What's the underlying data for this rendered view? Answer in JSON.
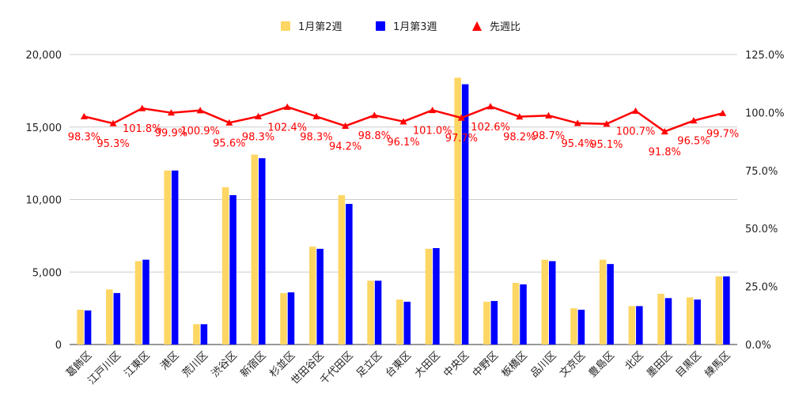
{
  "chart_data": {
    "type": "bar",
    "categories": [
      "葛飾区",
      "江戸川区",
      "江東区",
      "港区",
      "荒川区",
      "渋谷区",
      "新宿区",
      "杉並区",
      "世田谷区",
      "千代田区",
      "足立区",
      "台東区",
      "大田区",
      "中央区",
      "中野区",
      "板橋区",
      "品川区",
      "文京区",
      "豊島区",
      "北区",
      "墨田区",
      "目黒区",
      "練馬区"
    ],
    "series": [
      {
        "name": "1月第2週",
        "color": "#fdd663",
        "axis": "left",
        "values": [
          2400,
          3800,
          5750,
          12000,
          1400,
          10850,
          13100,
          3550,
          6750,
          10300,
          4400,
          3100,
          6600,
          18400,
          2950,
          4250,
          5850,
          2500,
          5850,
          2650,
          3500,
          3250,
          4700
        ]
      },
      {
        "name": "1月第3週",
        "color": "#0000ff",
        "axis": "left",
        "values": [
          2350,
          3550,
          5850,
          12000,
          1400,
          10300,
          12850,
          3600,
          6600,
          9700,
          4400,
          2950,
          6650,
          17950,
          3000,
          4150,
          5750,
          2400,
          5550,
          2650,
          3200,
          3100,
          4700
        ]
      },
      {
        "name": "先週比",
        "color": "#ff0000",
        "type": "line",
        "axis": "right",
        "values": [
          98.3,
          95.3,
          101.8,
          99.9,
          100.9,
          95.6,
          98.3,
          102.4,
          98.3,
          94.2,
          98.8,
          96.1,
          101.0,
          97.7,
          102.6,
          98.2,
          98.7,
          95.4,
          95.1,
          100.7,
          91.8,
          96.5,
          99.7
        ],
        "labels": [
          "98.3%",
          "95.3%",
          "101.8%",
          "99.9%",
          "100.9%",
          "95.6%",
          "98.3%",
          "102.4%",
          "98.3%",
          "94.2%",
          "98.8%",
          "96.1%",
          "101.0%",
          "97.7%",
          "102.6%",
          "98.2%",
          "98.7%",
          "95.4%",
          "95.1%",
          "100.7%",
          "91.8%",
          "96.5%",
          "99.7%"
        ]
      }
    ],
    "y_left": {
      "min": 0,
      "max": 20000,
      "ticks": [
        "0",
        "5,000",
        "10,000",
        "15,000",
        "20,000"
      ]
    },
    "y_right": {
      "min": 0,
      "max": 125,
      "ticks": [
        "0.0%",
        "25.0%",
        "50.0%",
        "75.0%",
        "100.0%",
        "125.0%"
      ]
    },
    "legend_position": "top",
    "grid": true
  }
}
